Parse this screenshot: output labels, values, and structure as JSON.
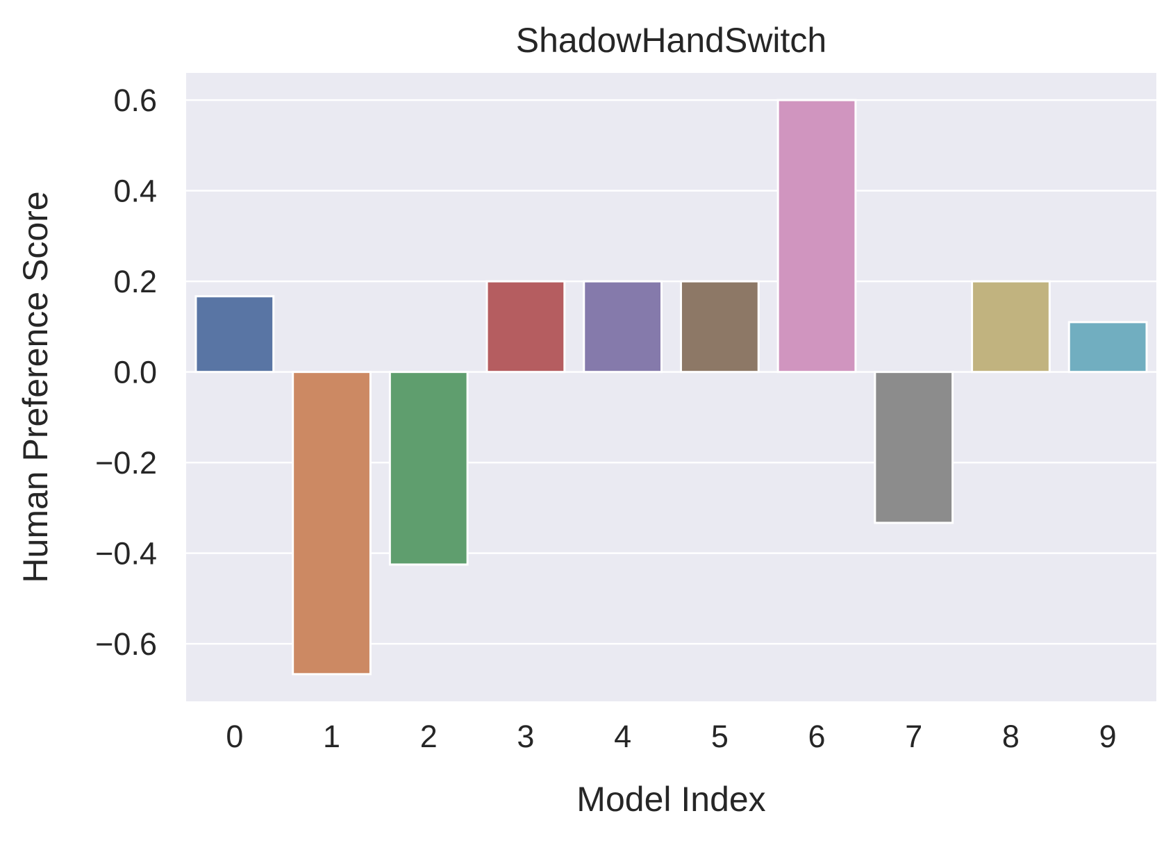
{
  "chart_data": {
    "type": "bar",
    "title": "ShadowHandSwitch",
    "xlabel": "Model Index",
    "ylabel": "Human Preference Score",
    "categories": [
      "0",
      "1",
      "2",
      "3",
      "4",
      "5",
      "6",
      "7",
      "8",
      "9"
    ],
    "values": [
      0.167,
      -0.667,
      -0.425,
      0.2,
      0.2,
      0.2,
      0.6,
      -0.333,
      0.2,
      0.11
    ],
    "colors": [
      "#5975a4",
      "#cc8963",
      "#5f9e6e",
      "#b55d60",
      "#857aab",
      "#8d7866",
      "#d095bf",
      "#8c8c8c",
      "#c1b37f",
      "#71aec0"
    ],
    "yticks": [
      -0.6,
      -0.4,
      -0.2,
      0.0,
      0.2,
      0.4,
      0.6
    ],
    "ytick_labels": [
      "−0.6",
      "−0.4",
      "−0.2",
      "0.0",
      "0.2",
      "0.4",
      "0.6"
    ],
    "ylim": [
      -0.727,
      0.66
    ],
    "grid": true,
    "legend": "none",
    "background": "#eaeaf2"
  }
}
